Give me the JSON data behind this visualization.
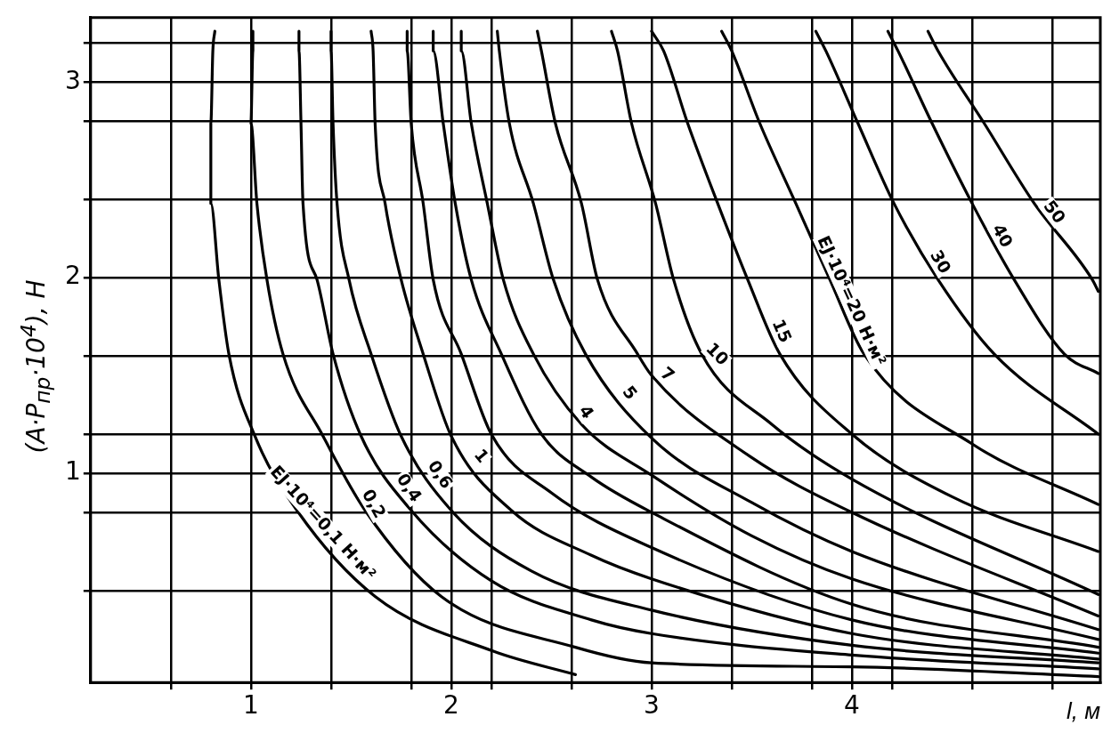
{
  "chart_data": {
    "type": "line",
    "xlabel": "l, м",
    "ylabel": "(A·P$_{пр}$·10$^{4}$), Н",
    "xlim": [
      0.2,
      5.24
    ],
    "ylim": [
      -0.07,
      3.33
    ],
    "xticks": [
      {
        "value": 0.6,
        "label": null
      },
      1,
      {
        "value": 1.4,
        "label": null
      },
      {
        "value": 1.8,
        "label": null
      },
      2,
      {
        "value": 2.2,
        "label": null
      },
      {
        "value": 2.6,
        "label": null
      },
      3,
      {
        "value": 3.4,
        "label": null
      },
      {
        "value": 3.8,
        "label": null
      },
      4,
      {
        "value": 4.2,
        "label": null
      },
      {
        "value": 4.6,
        "label": null
      },
      {
        "value": 5.0,
        "label": null
      }
    ],
    "yticks": [
      {
        "value": 0.4,
        "label": null
      },
      {
        "value": 0.8,
        "label": null
      },
      1,
      {
        "value": 1.2,
        "label": null
      },
      {
        "value": 1.6,
        "label": null
      },
      2,
      {
        "value": 2.4,
        "label": null
      },
      {
        "value": 2.8,
        "label": null
      },
      3,
      {
        "value": 3.2,
        "label": null
      }
    ],
    "grid": true,
    "legend": false,
    "marker": "none",
    "series": [
      {
        "name": "EJ·10⁴=0,1 Н·м²",
        "color": "#000000",
        "x": [
          0.82,
          0.81,
          0.8,
          0.8,
          0.84,
          0.89,
          1.02,
          1.23,
          1.62,
          2.21,
          2.62
        ],
        "values": [
          3.26,
          3.16,
          2.79,
          2.38,
          1.99,
          1.61,
          1.19,
          0.81,
          0.37,
          0.09,
          -0.03
        ]
      },
      {
        "name": "0,2",
        "color": "#000000",
        "x": [
          1.01,
          1.01,
          1.0,
          1.03,
          1.08,
          1.16,
          1.36,
          1.57,
          1.95,
          2.62,
          3.0,
          4.0,
          5.23
        ],
        "values": [
          3.26,
          3.16,
          2.79,
          2.38,
          1.99,
          1.61,
          1.19,
          0.81,
          0.37,
          0.11,
          0.03,
          0.01,
          -0.04
        ]
      },
      {
        "name": "0,4",
        "color": "#000000",
        "x": [
          1.24,
          1.24,
          1.25,
          1.26,
          1.33,
          1.41,
          1.55,
          1.8,
          2.2,
          2.7,
          3.0,
          4.0,
          5.23
        ],
        "values": [
          3.26,
          3.16,
          2.79,
          2.38,
          1.99,
          1.61,
          1.19,
          0.81,
          0.45,
          0.25,
          0.18,
          0.07,
          0.0
        ]
      },
      {
        "name": "0,6",
        "color": "#000000",
        "x": [
          1.4,
          1.4,
          1.41,
          1.43,
          1.49,
          1.6,
          1.75,
          2.0,
          2.4,
          3.0,
          4.0,
          5.23
        ],
        "values": [
          3.26,
          3.16,
          2.79,
          2.38,
          1.99,
          1.61,
          1.19,
          0.81,
          0.5,
          0.3,
          0.12,
          0.03
        ]
      },
      {
        "name": "1",
        "color": "#000000",
        "x": [
          1.6,
          1.61,
          1.62,
          1.67,
          1.75,
          1.86,
          2.0,
          2.3,
          2.7,
          3.0,
          4.0,
          5.23
        ],
        "values": [
          3.26,
          3.16,
          2.79,
          2.38,
          1.99,
          1.61,
          1.19,
          0.81,
          0.58,
          0.46,
          0.18,
          0.05
        ]
      },
      {
        "color": "#000000",
        "x": [
          1.78,
          1.78,
          1.8,
          1.86,
          1.91,
          2.05,
          2.2,
          2.5,
          3.0,
          4.0,
          5.23
        ],
        "values": [
          3.26,
          3.16,
          2.79,
          2.38,
          1.99,
          1.61,
          1.2,
          0.9,
          0.62,
          0.25,
          0.08
        ]
      },
      {
        "color": "#000000",
        "x": [
          1.91,
          1.91,
          1.96,
          2.02,
          2.1,
          2.25,
          2.45,
          2.7,
          3.0,
          4.0,
          5.23
        ],
        "values": [
          3.26,
          3.16,
          2.79,
          2.38,
          1.99,
          1.61,
          1.2,
          0.98,
          0.8,
          0.33,
          0.11
        ]
      },
      {
        "name": "4",
        "color": "#000000",
        "x": [
          2.05,
          2.05,
          2.1,
          2.18,
          2.26,
          2.41,
          2.65,
          3.0,
          3.5,
          4.0,
          5.23
        ],
        "values": [
          3.26,
          3.16,
          2.79,
          2.38,
          1.99,
          1.61,
          1.25,
          0.99,
          0.68,
          0.46,
          0.15
        ]
      },
      {
        "name": "5",
        "color": "#000000",
        "x": [
          2.23,
          2.24,
          2.29,
          2.41,
          2.51,
          2.67,
          3.0,
          3.5,
          4.0,
          5.23
        ],
        "values": [
          3.26,
          3.16,
          2.79,
          2.38,
          1.99,
          1.61,
          1.18,
          0.85,
          0.6,
          0.2
        ]
      },
      {
        "name": "7",
        "color": "#000000",
        "x": [
          2.43,
          2.45,
          2.52,
          2.65,
          2.73,
          2.93,
          3.0,
          3.5,
          4.0,
          5.23
        ],
        "values": [
          3.26,
          3.16,
          2.79,
          2.38,
          1.99,
          1.61,
          1.5,
          1.08,
          0.8,
          0.27
        ]
      },
      {
        "name": "10",
        "color": "#000000",
        "x": [
          2.8,
          2.83,
          2.9,
          3.02,
          3.11,
          3.25,
          3.6,
          4.0,
          5.23
        ],
        "values": [
          3.26,
          3.16,
          2.79,
          2.38,
          1.99,
          1.61,
          1.25,
          0.97,
          0.38
        ]
      },
      {
        "name": "15",
        "color": "#000000",
        "x": [
          3.0,
          3.06,
          3.18,
          3.33,
          3.48,
          3.64,
          4.0,
          4.5,
          5.23
        ],
        "values": [
          3.26,
          3.16,
          2.79,
          2.38,
          1.99,
          1.61,
          1.2,
          0.88,
          0.6
        ]
      },
      {
        "name": "EJ·10⁴=20 Н·м²",
        "color": "#000000",
        "x": [
          3.35,
          3.4,
          3.54,
          3.72,
          3.89,
          4.06,
          4.6,
          5.23
        ],
        "values": [
          3.26,
          3.16,
          2.79,
          2.38,
          1.99,
          1.61,
          1.15,
          0.84
        ]
      },
      {
        "name": "30",
        "color": "#000000",
        "x": [
          3.82,
          3.87,
          4.03,
          4.21,
          4.43,
          4.71,
          5.23
        ],
        "values": [
          3.26,
          3.16,
          2.79,
          2.38,
          1.99,
          1.61,
          1.2
        ]
      },
      {
        "name": "40",
        "color": "#000000",
        "x": [
          4.18,
          4.23,
          4.4,
          4.6,
          4.81,
          5.06,
          5.23
        ],
        "values": [
          3.26,
          3.16,
          2.79,
          2.38,
          1.99,
          1.61,
          1.51
        ]
      },
      {
        "name": "50",
        "color": "#000000",
        "x": [
          4.38,
          4.43,
          4.66,
          4.91,
          5.2,
          5.23
        ],
        "values": [
          3.26,
          3.16,
          2.79,
          2.38,
          1.99,
          1.93
        ]
      }
    ]
  }
}
